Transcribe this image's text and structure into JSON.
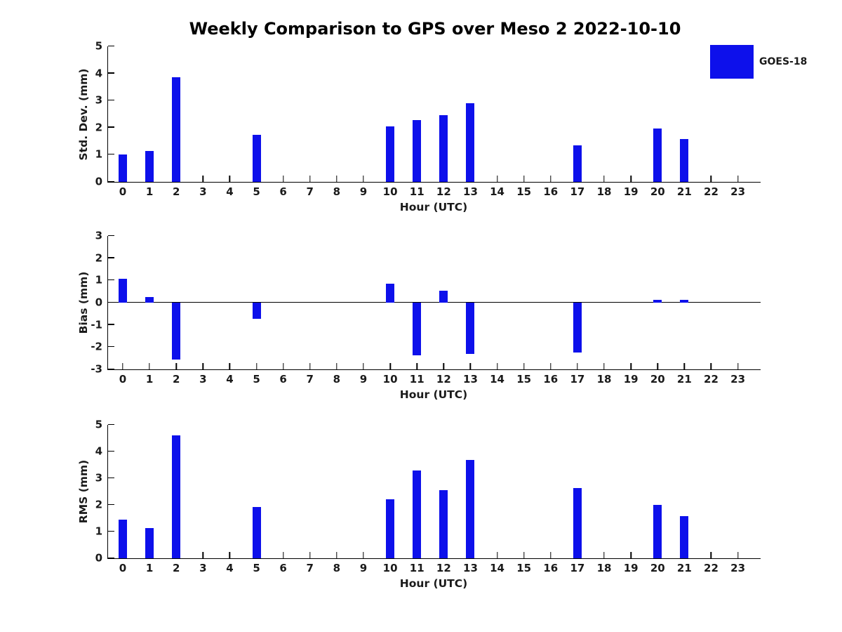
{
  "title": "Weekly Comparison to GPS over Meso 2 2022-10-10",
  "legend": {
    "label": "GOES-18",
    "color": "#0D10EB"
  },
  "colors": {
    "bar": "#0D10EB",
    "text": "#1a1a1a",
    "axis_line": "#000000"
  },
  "axis": {
    "xlabel": "Hour (UTC)",
    "xlim": [
      -0.55,
      23.85
    ],
    "xticks": [
      0,
      1,
      2,
      3,
      4,
      5,
      6,
      7,
      8,
      9,
      10,
      11,
      12,
      13,
      14,
      15,
      16,
      17,
      18,
      19,
      20,
      21,
      22,
      23
    ]
  },
  "chart_data": [
    {
      "type": "bar",
      "title": "Weekly Comparison to GPS over Meso 2 2022-10-10",
      "ylabel": "Std. Dev. (mm)",
      "xlabel": "Hour (UTC)",
      "ylim": [
        0,
        5
      ],
      "yticks": [
        0,
        1,
        2,
        3,
        4,
        5
      ],
      "grid": false,
      "legend_position": "upper-right-outside",
      "series": [
        {
          "name": "GOES-18",
          "x": [
            0,
            1,
            2,
            5,
            10,
            11,
            12,
            13,
            17,
            20,
            21
          ],
          "values": [
            1.0,
            1.13,
            3.85,
            1.74,
            2.04,
            2.28,
            2.47,
            2.9,
            1.35,
            1.97,
            1.59
          ]
        }
      ]
    },
    {
      "type": "bar",
      "ylabel": "Bias (mm)",
      "xlabel": "Hour (UTC)",
      "ylim": [
        -3,
        3
      ],
      "yticks": [
        -3,
        -2,
        -1,
        0,
        1,
        2,
        3
      ],
      "grid": false,
      "zero_line": true,
      "series": [
        {
          "name": "GOES-18",
          "x": [
            0,
            1,
            2,
            5,
            10,
            11,
            12,
            13,
            17,
            20,
            21
          ],
          "values": [
            1.07,
            0.26,
            -2.56,
            -0.74,
            0.85,
            -2.36,
            0.54,
            -2.29,
            -2.25,
            0.14,
            0.14
          ]
        }
      ]
    },
    {
      "type": "bar",
      "ylabel": "RMS (mm)",
      "xlabel": "Hour (UTC)",
      "ylim": [
        0,
        5
      ],
      "yticks": [
        0,
        1,
        2,
        3,
        4,
        5
      ],
      "grid": false,
      "series": [
        {
          "name": "GOES-18",
          "x": [
            0,
            1,
            2,
            5,
            10,
            11,
            12,
            13,
            17,
            20,
            21
          ],
          "values": [
            1.45,
            1.14,
            4.6,
            1.92,
            2.2,
            3.28,
            2.54,
            3.68,
            2.64,
            2.0,
            1.58
          ]
        }
      ]
    }
  ]
}
